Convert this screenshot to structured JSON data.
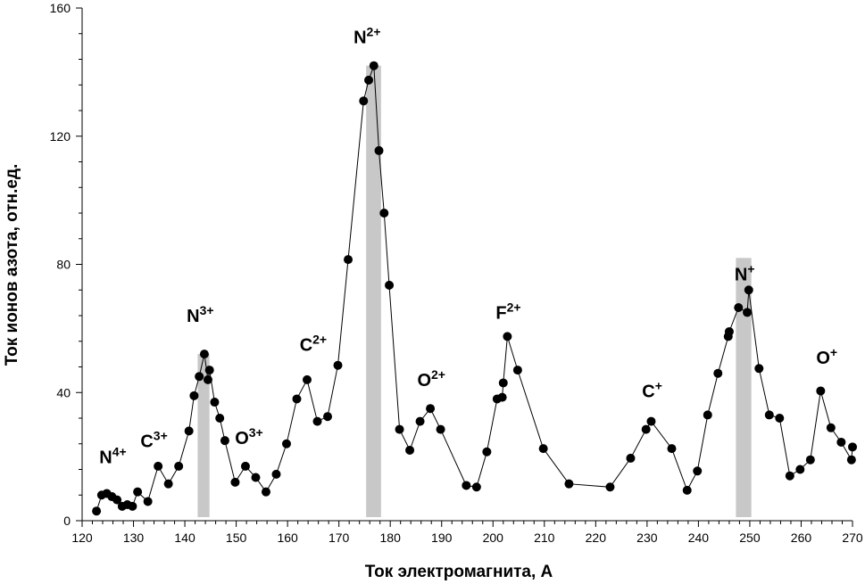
{
  "chart_data": {
    "type": "line",
    "xlabel": "Ток электромагнита, А",
    "ylabel": "Ток ионов азота, отн.ед.",
    "xlim": [
      120,
      270
    ],
    "ylim": [
      0,
      160
    ],
    "xticks": [
      120,
      130,
      140,
      150,
      160,
      170,
      180,
      190,
      200,
      210,
      220,
      230,
      240,
      250,
      260,
      270
    ],
    "yticks": [
      0,
      40,
      80,
      120,
      160
    ],
    "grid": false,
    "marker": "circle",
    "line_color": "#000000",
    "highlight_color": "#c8c8c8",
    "series": [
      {
        "x": [
          122.8,
          123.8,
          124.8,
          125.8,
          126.8,
          127.8,
          128.8,
          129.8,
          130.8,
          132.8,
          134.8,
          136.8,
          138.8,
          140.8,
          141.8,
          142.8,
          143.8,
          144.5,
          144.8,
          145.8,
          146.8,
          147.8,
          149.8,
          151.8,
          153.8,
          155.8,
          157.8,
          159.8,
          161.8,
          163.8,
          165.8,
          167.8,
          169.8,
          171.8,
          174.8,
          175.8,
          176.8,
          177.8,
          178.8,
          179.8,
          181.8,
          183.8,
          185.8,
          187.8,
          189.8,
          194.8,
          196.8,
          198.8,
          200.8,
          201.8,
          202.0,
          202.8,
          204.8,
          209.8,
          214.8,
          222.8,
          226.8,
          229.8,
          230.8,
          234.8,
          237.8,
          239.8,
          241.8,
          243.8,
          245.8,
          246.0,
          247.8,
          249.5,
          249.8,
          251.8,
          253.8,
          255.8,
          257.8,
          259.8,
          261.8,
          263.8,
          265.8,
          267.8,
          269.8,
          270.0
        ],
        "y": [
          3,
          8,
          8.5,
          7.5,
          6.5,
          4.5,
          5,
          4.5,
          9,
          6,
          17,
          11.5,
          17,
          28,
          39,
          45,
          52,
          44,
          47,
          37,
          32,
          25,
          12,
          17,
          13.5,
          9,
          14.5,
          24,
          38,
          44,
          31,
          32.5,
          48.5,
          81.5,
          131,
          137.5,
          142,
          115.5,
          96,
          73.5,
          28.5,
          22,
          31,
          35,
          28.5,
          11,
          10.5,
          21.5,
          38,
          38.5,
          43,
          57.5,
          47,
          22.5,
          11.5,
          10.5,
          19.5,
          28.5,
          31,
          22.5,
          9.5,
          15.5,
          33,
          46,
          57.5,
          59,
          66.5,
          65,
          72,
          47.5,
          33,
          32,
          14,
          16,
          19,
          40.5,
          29,
          24.5,
          19,
          23
        ]
      }
    ],
    "highlights": [
      {
        "x_from": 142.5,
        "x_to": 144.8,
        "y_to": 52
      },
      {
        "x_from": 175.3,
        "x_to": 178.2,
        "y_to": 142
      },
      {
        "x_from": 247.3,
        "x_to": 250.3,
        "y_to": 82
      }
    ],
    "annotations": [
      {
        "base": "N",
        "sup": "4+",
        "x": 126,
        "y": 18
      },
      {
        "base": "C",
        "sup": "3+",
        "x": 134,
        "y": 23
      },
      {
        "base": "N",
        "sup": "3+",
        "x": 143,
        "y": 62
      },
      {
        "base": "O",
        "sup": "3+",
        "x": 152.5,
        "y": 24
      },
      {
        "base": "C",
        "sup": "2+",
        "x": 165,
        "y": 53
      },
      {
        "base": "N",
        "sup": "2+",
        "x": 175.5,
        "y": 149
      },
      {
        "base": "O",
        "sup": "2+",
        "x": 188,
        "y": 42
      },
      {
        "base": "F",
        "sup": "2+",
        "x": 203,
        "y": 63
      },
      {
        "base": "C",
        "sup": "+",
        "x": 231,
        "y": 38.5
      },
      {
        "base": "N",
        "sup": "+",
        "x": 249,
        "y": 75
      },
      {
        "base": "O",
        "sup": "+",
        "x": 265,
        "y": 49
      }
    ]
  }
}
